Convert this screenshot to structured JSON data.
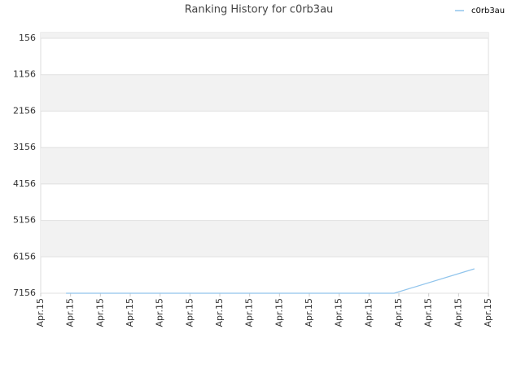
{
  "chart_data": {
    "type": "line",
    "title": "Ranking History for c0rb3au",
    "x": [
      0.85,
      11.84,
      14.53
    ],
    "series": [
      {
        "name": "c0rb3au",
        "color": "#90c4ec",
        "values": [
          7156,
          7156,
          6485
        ]
      }
    ],
    "xlim": [
      0,
      15
    ],
    "xticks": [
      {
        "value": 0,
        "label": "Apr.15"
      },
      {
        "value": 1,
        "label": "Apr.15"
      },
      {
        "value": 2,
        "label": "Apr.15"
      },
      {
        "value": 3,
        "label": "Apr.15"
      },
      {
        "value": 4,
        "label": "Apr.15"
      },
      {
        "value": 5,
        "label": "Apr.15"
      },
      {
        "value": 6,
        "label": "Apr.15"
      },
      {
        "value": 7,
        "label": "Apr.15"
      },
      {
        "value": 8,
        "label": "Apr.15"
      },
      {
        "value": 9,
        "label": "Apr.15"
      },
      {
        "value": 10,
        "label": "Apr.15"
      },
      {
        "value": 11,
        "label": "Apr.15"
      },
      {
        "value": 12,
        "label": "Apr.15"
      },
      {
        "value": 13,
        "label": "Apr.15"
      },
      {
        "value": 14,
        "label": "Apr.15"
      },
      {
        "value": 15,
        "label": "Apr.15"
      }
    ],
    "ylim": [
      7156,
      0
    ],
    "yticks": [
      156,
      1156,
      2156,
      3156,
      4156,
      5156,
      6156,
      7156
    ],
    "grid": true,
    "legend": "top-right"
  }
}
